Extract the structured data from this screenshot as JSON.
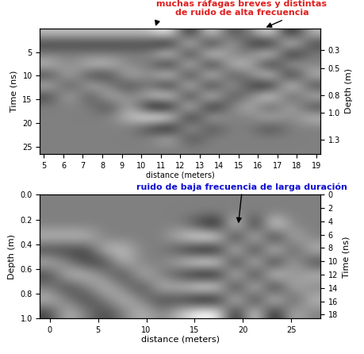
{
  "chart_data": [
    {
      "type": "heatmap",
      "xlabel": "distance (meters)",
      "ylabel": "Time (ns)",
      "y2label": "Depth (m)",
      "xlim": [
        4.8,
        19.2
      ],
      "xticks": [
        5,
        6,
        7,
        8,
        9,
        10,
        11,
        12,
        13,
        14,
        15,
        16,
        17,
        18,
        19
      ],
      "ylim": [
        26.5,
        0
      ],
      "yticks": [
        5,
        10,
        15,
        20,
        25
      ],
      "y2lim": [
        1.46,
        0.057
      ],
      "y2ticks": [
        0.3,
        0.5,
        0.8,
        1.0,
        1.3
      ],
      "clim": [
        -2,
        2
      ],
      "annotation": {
        "text": "muchas ráfagas breves y distintas\nde ruido de alta frecuencia",
        "color": "#e02020",
        "xy": [
          [
            10.7,
            0
          ],
          [
            16.3,
            0
          ]
        ]
      },
      "cells": [
        [
          1,
          1,
          1,
          1,
          1,
          1,
          2,
          -2,
          2,
          -1,
          0,
          2,
          -2,
          1
        ],
        [
          -1,
          -1,
          -1,
          -1,
          -1,
          -1,
          -2,
          2,
          -2,
          1,
          -1,
          -2,
          2,
          -1
        ],
        [
          0,
          0,
          0,
          0,
          0,
          0,
          2,
          -2,
          2,
          0,
          0,
          2,
          -2,
          0
        ],
        [
          1,
          0,
          1,
          1,
          0,
          0,
          -2,
          2,
          -2,
          1,
          1,
          -2,
          1,
          0
        ],
        [
          -1,
          1,
          -1,
          -1,
          1,
          0,
          2,
          -2,
          2,
          -1,
          0,
          2,
          -2,
          1
        ],
        [
          1,
          -1,
          1,
          0,
          -1,
          0,
          -2,
          2,
          -2,
          1,
          -1,
          -2,
          2,
          -1
        ],
        [
          -1,
          1,
          -1,
          1,
          0,
          1,
          2,
          -2,
          2,
          -1,
          0,
          2,
          -1,
          1
        ],
        [
          0,
          0,
          0,
          -1,
          1,
          -2,
          -2,
          2,
          -2,
          0,
          1,
          -1,
          1,
          -1
        ],
        [
          0,
          0,
          0,
          0,
          1,
          2,
          2,
          -2,
          1,
          0,
          0,
          1,
          0,
          1
        ],
        [
          0,
          0,
          0,
          0,
          0,
          -1,
          -2,
          1,
          -1,
          0,
          0,
          -1,
          0,
          0
        ],
        [
          0,
          0,
          0,
          0,
          0,
          0,
          1,
          -1,
          0,
          0,
          0,
          0,
          0,
          0
        ],
        [
          0,
          0,
          0,
          0,
          0,
          0,
          0,
          0,
          0,
          0,
          0,
          0,
          0,
          0
        ]
      ]
    },
    {
      "type": "heatmap",
      "xlabel": "distance (meters)",
      "ylabel": "Depth (m)",
      "y2label": "Time (ns)",
      "xlim": [
        -1,
        28
      ],
      "xticks": [
        0,
        5,
        10,
        15,
        20,
        25
      ],
      "ylim": [
        1.0,
        0.0
      ],
      "yticks": [
        0.0,
        0.2,
        0.4,
        0.6,
        0.8,
        1.0
      ],
      "y2lim": [
        18.6,
        0
      ],
      "y2ticks": [
        0,
        2,
        4,
        6,
        8,
        10,
        12,
        14,
        16,
        18
      ],
      "clim": [
        -2,
        2
      ],
      "annotation": {
        "text": "ruido de baja frecuencia de larga duración",
        "color": "#1010d0",
        "xy": [
          [
            19.5,
            0.25
          ]
        ]
      },
      "cells": [
        [
          0,
          0,
          0,
          0,
          0,
          0,
          0,
          0,
          0,
          0,
          0,
          0,
          0,
          0,
          0
        ],
        [
          0,
          0,
          0,
          0,
          0,
          0,
          0,
          0,
          0,
          0,
          0,
          0,
          0,
          0,
          0
        ],
        [
          0,
          0,
          0,
          0,
          0,
          0,
          0,
          0,
          -1,
          -2,
          2,
          -2,
          2,
          0,
          0
        ],
        [
          1,
          1,
          1,
          0,
          0,
          0,
          0,
          1,
          2,
          2,
          -2,
          2,
          -2,
          1,
          0
        ],
        [
          -1,
          -1,
          -1,
          1,
          1,
          0,
          0,
          -1,
          -2,
          -2,
          2,
          -2,
          2,
          -1,
          1
        ],
        [
          1,
          0,
          -1,
          -1,
          1,
          0,
          0,
          1,
          2,
          2,
          -2,
          2,
          -2,
          1,
          -1
        ],
        [
          -1,
          1,
          1,
          0,
          -1,
          1,
          0,
          -1,
          -2,
          -2,
          2,
          -2,
          2,
          0,
          1
        ],
        [
          0,
          -1,
          0,
          1,
          0,
          -1,
          1,
          1,
          2,
          2,
          -2,
          2,
          -2,
          1,
          0
        ],
        [
          1,
          0,
          -1,
          0,
          1,
          0,
          -1,
          -1,
          -2,
          -2,
          2,
          -2,
          2,
          -1,
          1
        ],
        [
          -1,
          1,
          0,
          -1,
          0,
          1,
          0,
          1,
          2,
          2,
          -2,
          2,
          -2,
          1,
          0
        ]
      ]
    }
  ]
}
